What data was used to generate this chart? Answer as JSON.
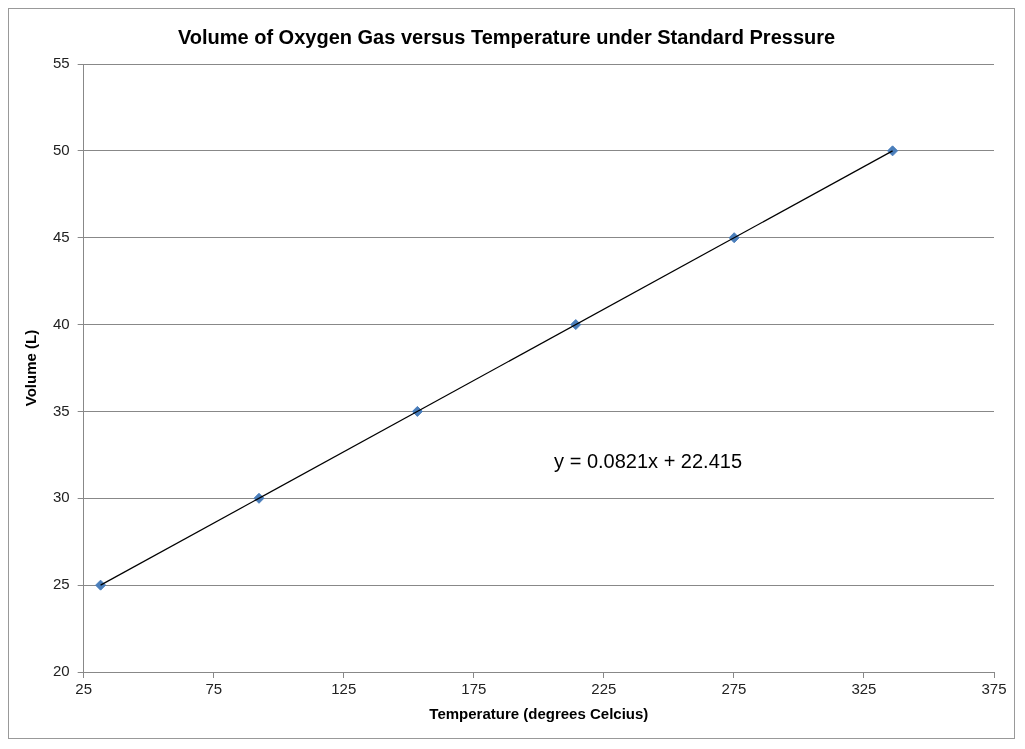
{
  "chart_data": {
    "type": "scatter",
    "title": "Volume of Oxygen Gas versus Temperature under Standard Pressure",
    "xlabel": "Temperature (degrees Celcius)",
    "ylabel": "Volume (L)",
    "series": [
      {
        "type": "scatter",
        "x": [
          31.5,
          92.4,
          153.3,
          214.2,
          275.1,
          336
        ],
        "values": [
          25,
          30,
          35,
          40,
          45,
          50
        ],
        "color": "#4a7ebb",
        "marker": "diamond"
      },
      {
        "type": "line",
        "x": [
          31.5,
          336
        ],
        "values": [
          25,
          50
        ],
        "color": "#000000",
        "marker": "none",
        "line_style": "solid"
      }
    ],
    "xlim": [
      25,
      375
    ],
    "xticks": [
      25,
      75,
      125,
      175,
      225,
      275,
      325,
      375
    ],
    "ylim": [
      20,
      55
    ],
    "yticks": [
      20,
      25,
      30,
      35,
      40,
      45,
      50,
      55
    ],
    "grid": "y",
    "legend": false,
    "annotations": [
      "y = 0.0821x + 22.415"
    ]
  }
}
